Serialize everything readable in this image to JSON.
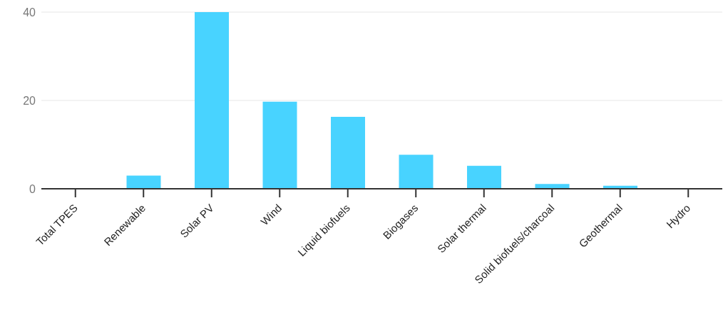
{
  "chart_data": {
    "type": "bar",
    "categories": [
      "Total TPES",
      "Renewable",
      "Solar PV",
      "Wind",
      "Liquid biofuels",
      "Biogases",
      "Solar thermal",
      "Solid biofuels/charcoal",
      "Geothermal",
      "Hydro"
    ],
    "values": [
      0,
      3,
      40,
      19.7,
      16.3,
      7.7,
      5.2,
      1.1,
      0.7,
      0
    ],
    "color": "#48d3ff",
    "ylim": [
      0,
      40
    ],
    "yticks": [
      0,
      20,
      40
    ],
    "grid": "y"
  }
}
